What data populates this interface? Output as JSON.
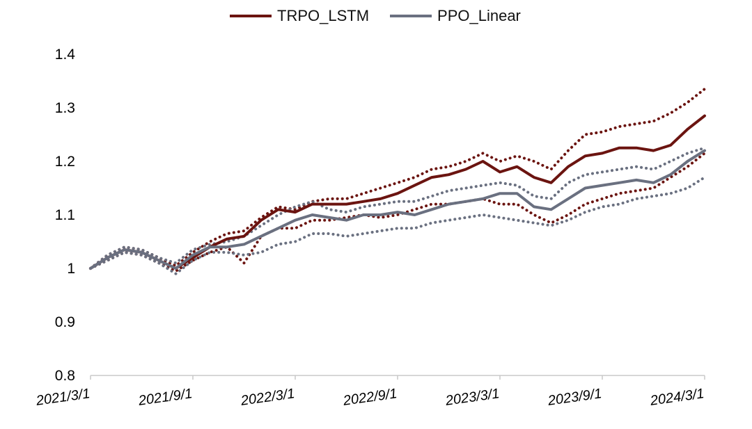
{
  "chart_data": {
    "type": "line",
    "title": "",
    "xlabel": "",
    "ylabel": "",
    "ylim": [
      0.8,
      1.4
    ],
    "yticks": [
      "0.8",
      "0.9",
      "1",
      "1.1",
      "1.2",
      "1.3",
      "1.4"
    ],
    "ytick_values": [
      0.8,
      0.9,
      1.0,
      1.1,
      1.2,
      1.3,
      1.4
    ],
    "xticks": [
      "2021/3/1",
      "2021/9/1",
      "2022/3/1",
      "2022/9/1",
      "2023/3/1",
      "2023/9/1",
      "2024/3/1"
    ],
    "x": [
      0,
      1,
      2,
      3,
      4,
      5,
      6,
      7,
      8,
      9,
      10,
      11,
      12,
      13,
      14,
      15,
      16,
      17,
      18,
      19,
      20,
      21,
      22,
      23,
      24,
      25,
      26,
      27,
      28,
      29,
      30,
      31,
      32,
      33,
      34,
      35,
      36
    ],
    "legend_position": "top-center",
    "series": [
      {
        "name": "TRPO_LSTM",
        "color": "#6b1410",
        "style": "solid",
        "values": [
          1.0,
          1.02,
          1.035,
          1.03,
          1.015,
          1.0,
          1.02,
          1.04,
          1.055,
          1.06,
          1.09,
          1.11,
          1.105,
          1.12,
          1.12,
          1.12,
          1.125,
          1.13,
          1.14,
          1.155,
          1.17,
          1.175,
          1.185,
          1.2,
          1.18,
          1.19,
          1.17,
          1.16,
          1.19,
          1.21,
          1.215,
          1.225,
          1.225,
          1.22,
          1.23,
          1.26,
          1.285
        ]
      },
      {
        "name": "PPO_Linear",
        "color": "#6a7080",
        "style": "solid",
        "values": [
          1.0,
          1.02,
          1.035,
          1.03,
          1.015,
          1.0,
          1.025,
          1.04,
          1.04,
          1.045,
          1.06,
          1.075,
          1.09,
          1.1,
          1.095,
          1.09,
          1.1,
          1.1,
          1.105,
          1.1,
          1.11,
          1.12,
          1.125,
          1.13,
          1.14,
          1.14,
          1.115,
          1.11,
          1.13,
          1.15,
          1.155,
          1.16,
          1.165,
          1.16,
          1.175,
          1.2,
          1.22
        ]
      },
      {
        "name": "TRPO_LSTM upper band",
        "color": "#6b1410",
        "style": "dotted",
        "values": [
          1.0,
          1.025,
          1.04,
          1.035,
          1.02,
          1.005,
          1.03,
          1.05,
          1.065,
          1.07,
          1.095,
          1.115,
          1.11,
          1.125,
          1.13,
          1.13,
          1.14,
          1.15,
          1.16,
          1.17,
          1.185,
          1.19,
          1.2,
          1.215,
          1.2,
          1.21,
          1.2,
          1.185,
          1.22,
          1.25,
          1.255,
          1.265,
          1.27,
          1.275,
          1.29,
          1.31,
          1.335
        ]
      },
      {
        "name": "TRPO_LSTM lower band",
        "color": "#6b1410",
        "style": "dotted",
        "values": [
          1.0,
          1.015,
          1.03,
          1.025,
          1.01,
          0.995,
          1.015,
          1.03,
          1.04,
          1.01,
          1.06,
          1.075,
          1.075,
          1.09,
          1.09,
          1.095,
          1.1,
          1.095,
          1.1,
          1.11,
          1.12,
          1.12,
          1.125,
          1.13,
          1.12,
          1.12,
          1.1,
          1.085,
          1.1,
          1.12,
          1.13,
          1.14,
          1.145,
          1.15,
          1.17,
          1.19,
          1.215
        ]
      },
      {
        "name": "PPO_Linear upper band",
        "color": "#6a7080",
        "style": "dotted",
        "values": [
          1.0,
          1.025,
          1.04,
          1.035,
          1.02,
          1.01,
          1.035,
          1.045,
          1.05,
          1.06,
          1.08,
          1.1,
          1.115,
          1.125,
          1.11,
          1.105,
          1.115,
          1.12,
          1.125,
          1.125,
          1.135,
          1.145,
          1.15,
          1.155,
          1.16,
          1.155,
          1.135,
          1.13,
          1.16,
          1.175,
          1.18,
          1.185,
          1.19,
          1.185,
          1.2,
          1.215,
          1.225
        ]
      },
      {
        "name": "PPO_Linear lower band",
        "color": "#6a7080",
        "style": "dotted",
        "values": [
          1.0,
          1.015,
          1.03,
          1.025,
          1.01,
          0.99,
          1.015,
          1.03,
          1.03,
          1.025,
          1.03,
          1.045,
          1.05,
          1.065,
          1.065,
          1.06,
          1.065,
          1.07,
          1.075,
          1.075,
          1.085,
          1.09,
          1.095,
          1.1,
          1.095,
          1.09,
          1.085,
          1.08,
          1.09,
          1.105,
          1.115,
          1.12,
          1.13,
          1.135,
          1.14,
          1.15,
          1.17
        ]
      }
    ]
  },
  "legend": {
    "items": [
      {
        "label": "TRPO_LSTM",
        "color": "#6b1410"
      },
      {
        "label": "PPO_Linear",
        "color": "#6a7080"
      }
    ]
  }
}
